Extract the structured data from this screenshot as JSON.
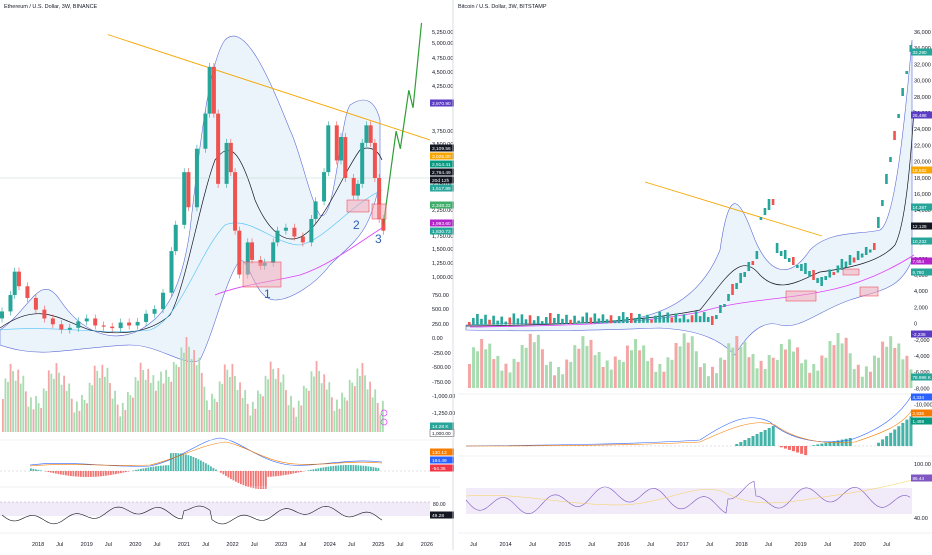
{
  "left": {
    "header": "Ethereum / U.S. Dollar, 3W, BINANCE",
    "y_ticks": [
      "5,250.00",
      "5,000.00",
      "4,750.00",
      "4,500.00",
      "4,250.00",
      "3,750.00",
      "3,500.00",
      "3,250.00",
      "2,750.00",
      "2,250.00",
      "1,750.00",
      "1,500.00",
      "1,250.00",
      "1,000.00",
      "750.00",
      "500.00",
      "250.00",
      "0.00",
      "-250.00",
      "-500.00",
      "-750.00",
      "-1,000.00",
      "-1,250.00"
    ],
    "x_ticks": [
      "2018",
      "Jul",
      "2019",
      "Jul",
      "2020",
      "Jul",
      "2021",
      "Jul",
      "2022",
      "Jul",
      "2023",
      "Jul",
      "2024",
      "Jul",
      "2025",
      "Jul",
      "2026"
    ],
    "badges": [
      {
        "text": "3,970.90",
        "color": "#5b3cc4"
      },
      {
        "text": "3,109.56",
        "color": "#131722"
      },
      {
        "text": "3,025.00",
        "color": "#f7a600"
      },
      {
        "text": "2,914.41",
        "color": "#089981"
      },
      {
        "text": "2,764.49",
        "color": "#131722"
      },
      {
        "text": "20d 12h",
        "color": "#131722"
      },
      {
        "text": "1,517.89",
        "color": "#26a69a"
      },
      {
        "text": "2,348.22",
        "color": "#3fae6a"
      },
      {
        "text": "1,993.60",
        "color": "#b223c9"
      },
      {
        "text": "1,830.73",
        "color": "#26a69a"
      },
      {
        "text": "14.28 K",
        "color": "#26a69a"
      },
      {
        "text": "1,000.00",
        "color": "#ffffff"
      },
      {
        "text": "130.13",
        "color": "#f57c00"
      },
      {
        "text": "184.49",
        "color": "#2962ff"
      },
      {
        "text": "-54.35",
        "color": "#f23645"
      },
      {
        "text": "49.28",
        "color": "#131722"
      }
    ],
    "rsi_level": "80.00",
    "annotations": [
      "1",
      "2",
      "3"
    ],
    "price": {
      "x_range": [
        "2017-10",
        "2026-03"
      ],
      "y_range": [
        -1300,
        5400
      ],
      "candles": [
        [
          "2017-10",
          300,
          420
        ],
        [
          "2017-12",
          420,
          700
        ],
        [
          "2018-01",
          700,
          1100
        ],
        [
          "2018-02",
          1100,
          850
        ],
        [
          "2018-04",
          850,
          650
        ],
        [
          "2018-06",
          650,
          450
        ],
        [
          "2018-08",
          450,
          300
        ],
        [
          "2018-10",
          300,
          200
        ],
        [
          "2018-12",
          200,
          110
        ],
        [
          "2019-02",
          110,
          140
        ],
        [
          "2019-04",
          140,
          250
        ],
        [
          "2019-06",
          250,
          300
        ],
        [
          "2019-08",
          300,
          180
        ],
        [
          "2019-10",
          180,
          160
        ],
        [
          "2019-12",
          160,
          135
        ],
        [
          "2020-02",
          135,
          230
        ],
        [
          "2020-04",
          230,
          180
        ],
        [
          "2020-06",
          180,
          240
        ],
        [
          "2020-08",
          240,
          380
        ],
        [
          "2020-10",
          380,
          460
        ],
        [
          "2020-12",
          460,
          740
        ],
        [
          "2021-02",
          740,
          1450
        ],
        [
          "2021-03",
          1450,
          1900
        ],
        [
          "2021-05",
          1900,
          2800
        ],
        [
          "2021-06",
          2800,
          2200
        ],
        [
          "2021-08",
          2200,
          3200
        ],
        [
          "2021-10",
          3200,
          3800
        ],
        [
          "2021-11",
          3800,
          4600
        ],
        [
          "2021-12",
          4600,
          3800
        ],
        [
          "2022-01",
          3800,
          2600
        ],
        [
          "2022-03",
          2600,
          3300
        ],
        [
          "2022-04",
          3300,
          2800
        ],
        [
          "2022-05",
          2800,
          1800
        ],
        [
          "2022-06",
          1800,
          1050
        ],
        [
          "2022-08",
          1050,
          1600
        ],
        [
          "2022-09",
          1600,
          1300
        ],
        [
          "2022-11",
          1300,
          1200
        ],
        [
          "2022-12",
          1200,
          1250
        ],
        [
          "2023-02",
          1250,
          1600
        ],
        [
          "2023-03",
          1600,
          1800
        ],
        [
          "2023-05",
          1800,
          1850
        ],
        [
          "2023-07",
          1850,
          1700
        ],
        [
          "2023-09",
          1700,
          1600
        ],
        [
          "2023-11",
          1600,
          2000
        ],
        [
          "2023-12",
          2000,
          2300
        ],
        [
          "2024-02",
          2300,
          2800
        ],
        [
          "2024-03",
          2800,
          3600
        ],
        [
          "2024-05",
          3600,
          3000
        ],
        [
          "2024-06",
          3000,
          3400
        ],
        [
          "2024-07",
          3400,
          2700
        ],
        [
          "2024-09",
          2700,
          2400
        ],
        [
          "2024-10",
          2400,
          2600
        ],
        [
          "2024-11",
          2600,
          3300
        ],
        [
          "2024-12",
          3300,
          3600
        ],
        [
          "2025-01",
          3600,
          3300
        ],
        [
          "2025-02",
          3300,
          2700
        ],
        [
          "2025-03",
          2700,
          2000
        ],
        [
          "2025-04",
          2000,
          1800
        ]
      ]
    },
    "forecast_path": [
      [
        "2025-04",
        1900
      ],
      [
        "2025-07",
        3500
      ],
      [
        "2025-08",
        3200
      ],
      [
        "2025-10",
        4200
      ],
      [
        "2025-11",
        3900
      ],
      [
        "2026-01",
        5350
      ]
    ],
    "trendline": [
      [
        "2019-11",
        5150
      ],
      [
        "2026-03",
        3350
      ]
    ]
  },
  "right": {
    "header": "Bitcoin / U.S. Dollar, 3W, BITSTAMP",
    "y_ticks": [
      "36,000",
      "34,000",
      "32,000",
      "30,000",
      "28,000",
      "26,000",
      "24,000",
      "22,000",
      "20,000",
      "18,000",
      "16,000",
      "14,000",
      "12,000",
      "10,000",
      "8,000",
      "6,000",
      "4,000",
      "2,000",
      "0",
      "-2,000",
      "-4,000",
      "-6,000",
      "-8,000",
      "-10,000",
      "-12,000"
    ],
    "rsi_ticks": [
      "100.00",
      "40.00"
    ],
    "x_ticks": [
      "Jul",
      "2014",
      "Jul",
      "2015",
      "Jul",
      "2016",
      "Jul",
      "2017",
      "Jul",
      "2018",
      "Jul",
      "2019",
      "Jul",
      "2020",
      "Jul"
    ],
    "badges": [
      {
        "text": "33,290",
        "color": "#26a69a"
      },
      {
        "text": "25,488",
        "color": "#5b3cc4"
      },
      {
        "text": "18,582",
        "color": "#f7a600"
      },
      {
        "text": "14,387",
        "color": "#26a69a"
      },
      {
        "text": "12,128",
        "color": "#131722"
      },
      {
        "text": "10,232",
        "color": "#26a69a"
      },
      {
        "text": "7,654",
        "color": "#b223c9"
      },
      {
        "text": "6,780",
        "color": "#26a69a"
      },
      {
        "text": "-2,238",
        "color": "#5b3cc4"
      },
      {
        "text": "78.996 K",
        "color": "#26a69a"
      },
      {
        "text": "4,334",
        "color": "#2962ff"
      },
      {
        "text": "2,836",
        "color": "#f57c00"
      },
      {
        "text": "1,498",
        "color": "#089981"
      },
      {
        "text": "86.44",
        "color": "#7e57c2"
      }
    ]
  }
}
